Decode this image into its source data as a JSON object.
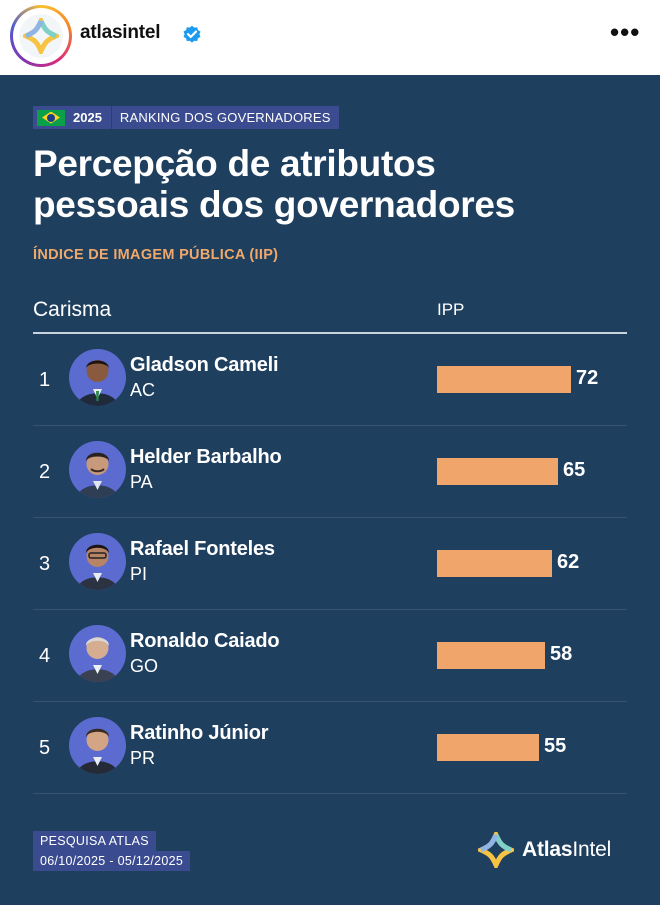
{
  "header": {
    "username": "atlasintel",
    "more_label": "•••"
  },
  "card": {
    "tag": {
      "year": "2025",
      "label": "RANKING DOS GOVERNADORES"
    },
    "title_line1": "Percepção de atributos",
    "title_line2": "pessoais dos governadores",
    "subtitle": "ÍNDICE DE IMAGEM PÚBLICA (IIP)",
    "column_left": "Carisma",
    "column_right": "IPP",
    "max_value": 100,
    "rows": [
      {
        "rank": "1",
        "name": "Gladson Cameli",
        "state": "AC",
        "value": 72
      },
      {
        "rank": "2",
        "name": "Helder Barbalho",
        "state": "PA",
        "value": 65
      },
      {
        "rank": "3",
        "name": "Rafael Fonteles",
        "state": "PI",
        "value": 62
      },
      {
        "rank": "4",
        "name": "Ronaldo Caiado",
        "state": "GO",
        "value": 58
      },
      {
        "rank": "5",
        "name": "Ratinho Júnior",
        "state": "PR",
        "value": 55
      }
    ],
    "footer": {
      "survey": "PESQUISA ATLAS",
      "dates": "06/10/2025 - 05/12/2025"
    },
    "brand": {
      "part1": "Atlas",
      "part2": "Intel"
    }
  },
  "colors": {
    "card_bg": "#1f3f5f",
    "bar": "#f0a66b",
    "accent": "#f0a86b",
    "tag_bg": "#3b4b8f"
  }
}
